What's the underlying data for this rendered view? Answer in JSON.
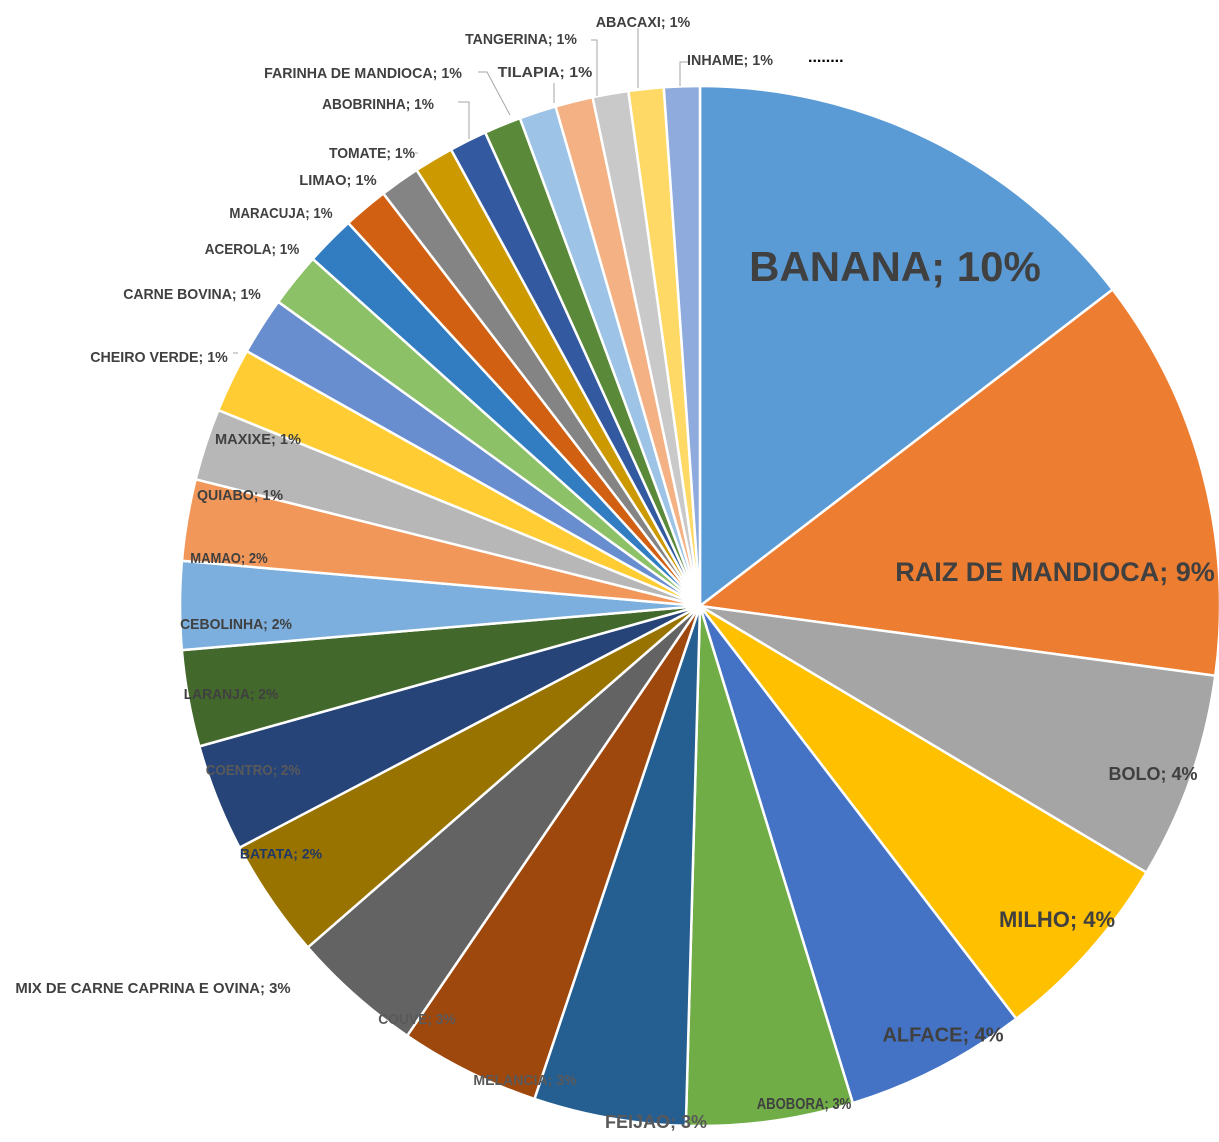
{
  "chart_data": {
    "type": "pie",
    "title": "",
    "overflow_note": "........",
    "slices": [
      {
        "label": "BANANA",
        "value": 10,
        "display": "BANANA; 10%",
        "color": "#5B9BD5"
      },
      {
        "label": "RAIZ DE MANDIOCA",
        "value": 9,
        "display": "RAIZ DE MANDIOCA; 9%",
        "color": "#ED7D31"
      },
      {
        "label": "BOLO",
        "value": 4,
        "display": "BOLO; 4%",
        "color": "#A5A5A5"
      },
      {
        "label": "MILHO",
        "value": 4,
        "display": "MILHO; 4%",
        "color": "#FFC000"
      },
      {
        "label": "ALFACE",
        "value": 4,
        "display": "ALFACE; 4%",
        "color": "#4472C4"
      },
      {
        "label": "ABOBORA",
        "value": 3,
        "display": "ABOBORA; 3%",
        "color": "#70AD47"
      },
      {
        "label": "FEIJAO",
        "value": 3,
        "display": "FEIJAO; 3%",
        "color": "#255E91"
      },
      {
        "label": "MELANCIA",
        "value": 3,
        "display": "MELANCIA; 3%",
        "color": "#9E480E"
      },
      {
        "label": "COUVE",
        "value": 3,
        "display": "COUVE; 3%",
        "color": "#636363"
      },
      {
        "label": "MIX DE CARNE CAPRINA E OVINA",
        "value": 3,
        "display": "MIX DE CARNE CAPRINA E OVINA; 3%",
        "color": "#997300"
      },
      {
        "label": "BATATA",
        "value": 2,
        "display": "BATATA; 2%",
        "color": "#264478"
      },
      {
        "label": "COENTRO",
        "value": 2,
        "display": "COENTRO; 2%",
        "color": "#43682B"
      },
      {
        "label": "LARANJA",
        "value": 2,
        "display": "LARANJA; 2%",
        "color": "#7CAFDD"
      },
      {
        "label": "CEBOLINHA",
        "value": 2,
        "display": "CEBOLINHA; 2%",
        "color": "#F1975A"
      },
      {
        "label": "MAMAO",
        "value": 2,
        "display": "MAMAO; 2%",
        "color": "#B7B7B7"
      },
      {
        "label": "QUIABO",
        "value": 1,
        "display": "QUIABO; 1%",
        "color": "#FFCD33"
      },
      {
        "label": "MAXIXE",
        "value": 1,
        "display": "MAXIXE; 1%",
        "color": "#698ED0"
      },
      {
        "label": "CHEIRO VERDE",
        "value": 1,
        "display": "CHEIRO VERDE; 1%",
        "color": "#8CC168"
      },
      {
        "label": "CARNE BOVINA",
        "value": 1,
        "display": "CARNE BOVINA; 1%",
        "color": "#327DC2"
      },
      {
        "label": "ACEROLA",
        "value": 1,
        "display": "ACEROLA; 1%",
        "color": "#D26012"
      },
      {
        "label": "MARACUJA",
        "value": 1,
        "display": "MARACUJA; 1%",
        "color": "#848484"
      },
      {
        "label": "LIMAO",
        "value": 1,
        "display": "LIMAO; 1%",
        "color": "#CC9A00"
      },
      {
        "label": "TOMATE",
        "value": 1,
        "display": "TOMATE; 1%",
        "color": "#335AA1"
      },
      {
        "label": "ABOBRINHA",
        "value": 1,
        "display": "ABOBRINHA; 1%",
        "color": "#5A8A39"
      },
      {
        "label": "FARINHA DE MANDIOCA",
        "value": 1,
        "display": "FARINHA DE MANDIOCA; 1%",
        "color": "#9DC3E6"
      },
      {
        "label": "TILAPIA",
        "value": 1,
        "display": "TILAPIA; 1%",
        "color": "#F4B183"
      },
      {
        "label": "TANGERINA",
        "value": 1,
        "display": "TANGERINA; 1%",
        "color": "#C9C9C9"
      },
      {
        "label": "ABACAXI",
        "value": 1,
        "display": "ABACAXI; 1%",
        "color": "#FFD966"
      },
      {
        "label": "INHAME",
        "value": 1,
        "display": "INHAME; 1%",
        "color": "#8FAADC"
      }
    ]
  }
}
